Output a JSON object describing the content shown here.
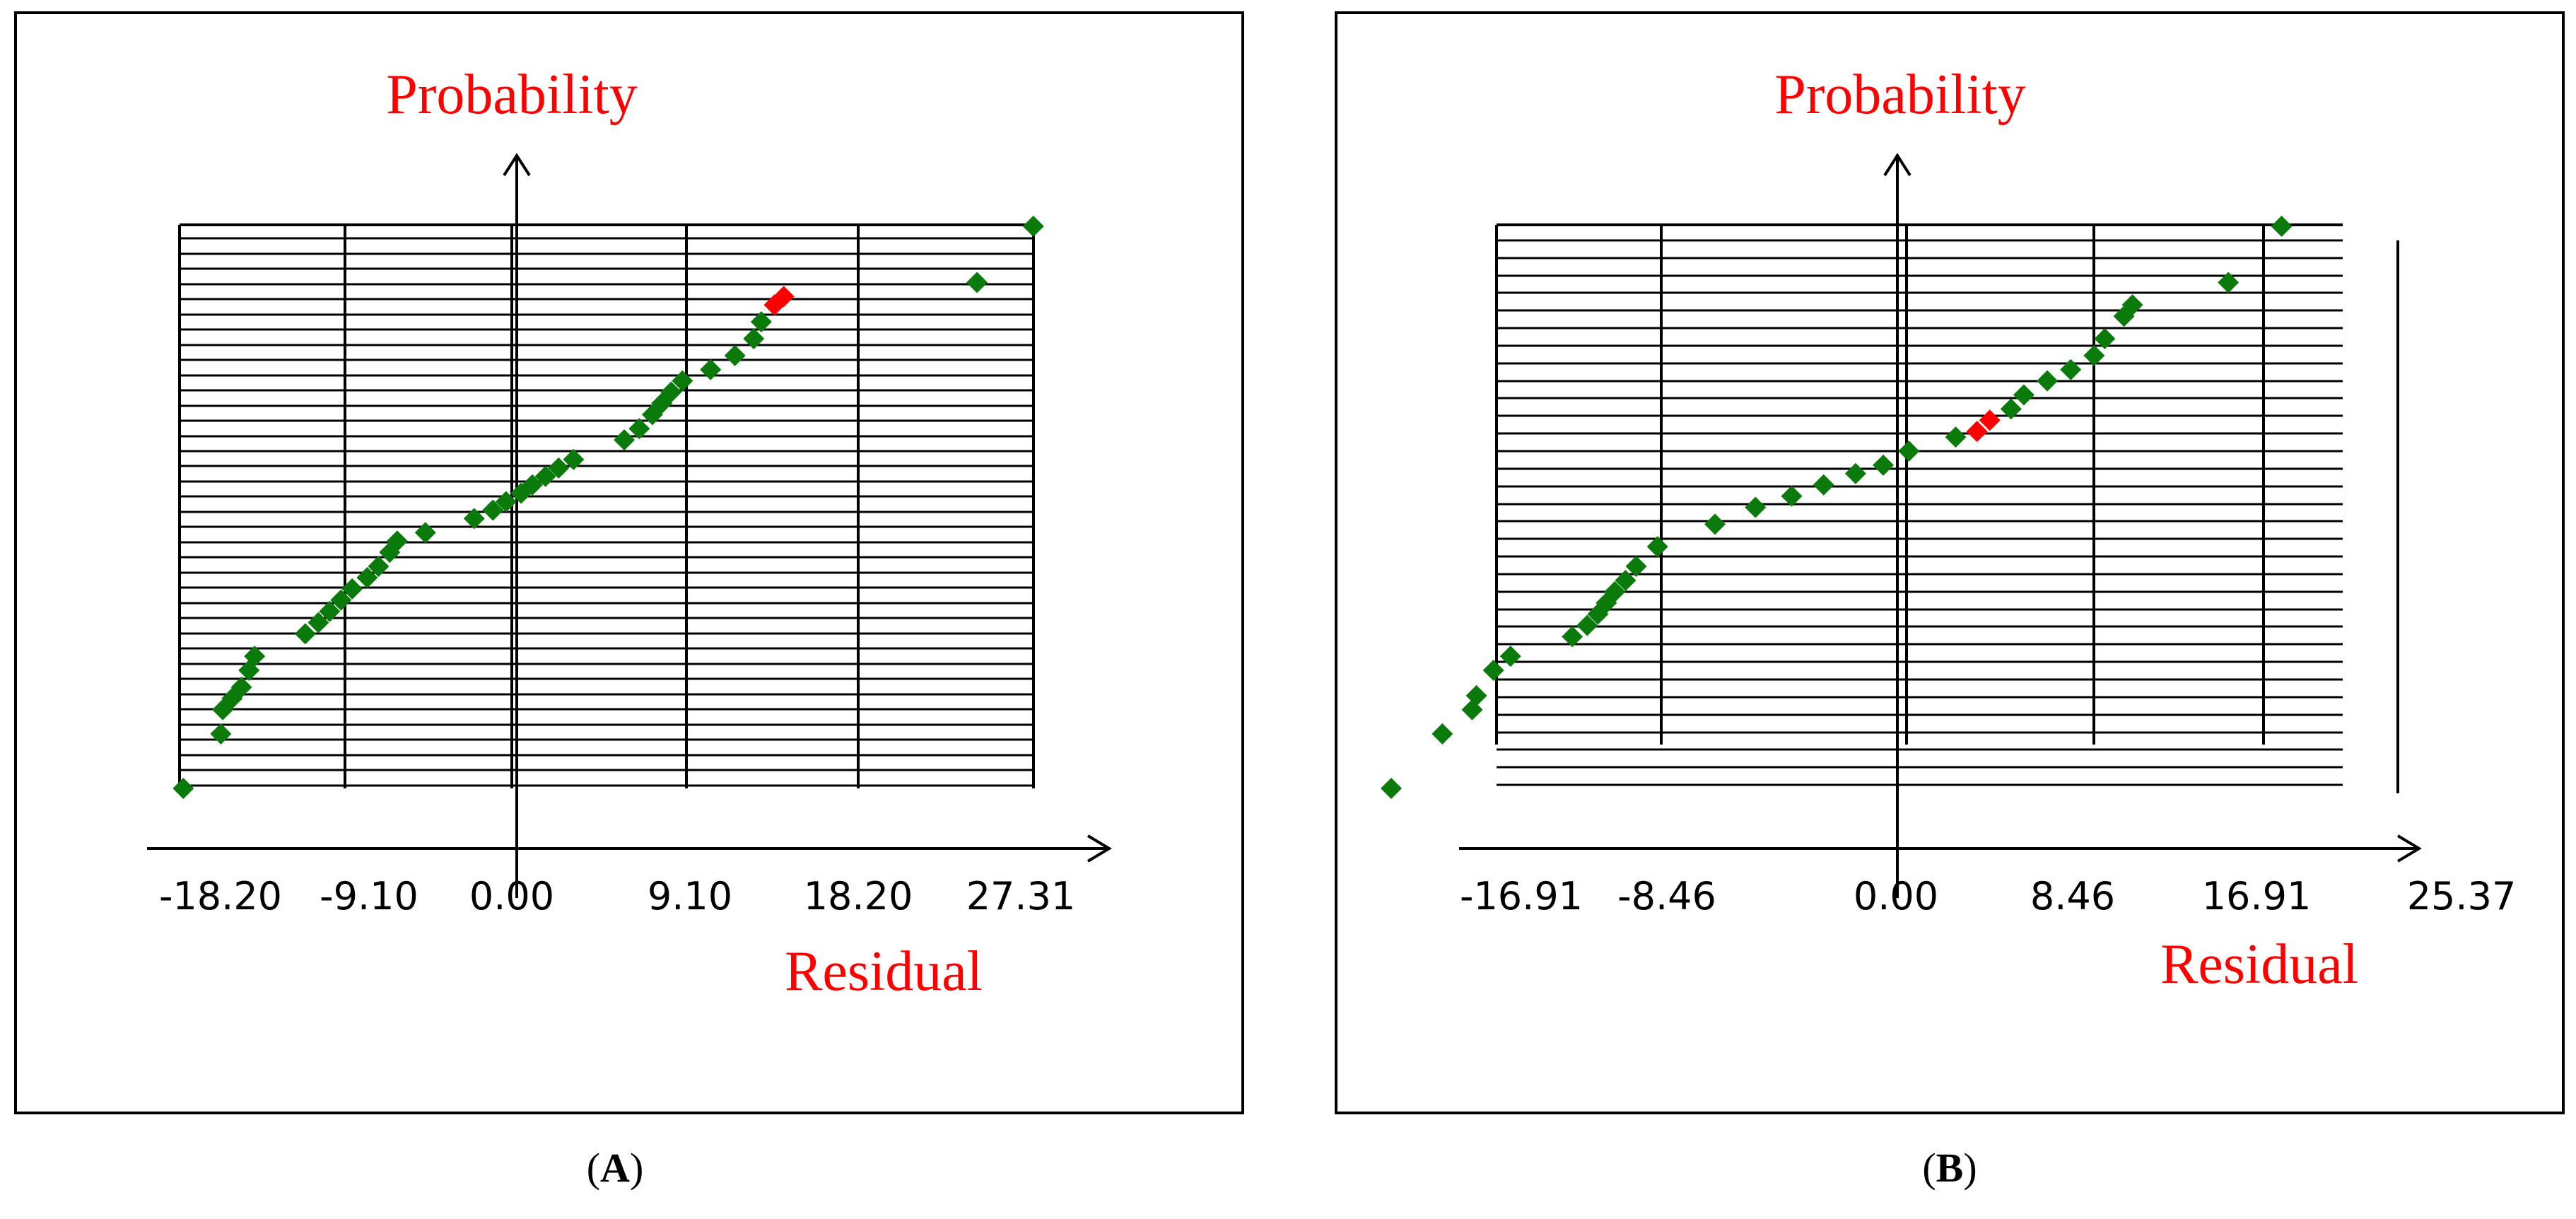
{
  "chart_data": [
    {
      "panel": "A",
      "type": "scatter",
      "title": "",
      "ylabel": "Probability",
      "xlabel": "Residual",
      "xticks": [
        "-18.20",
        "-9.10",
        "0.00",
        "9.10",
        "18.20",
        "27.31"
      ],
      "xlim": [
        -18.2,
        27.31
      ],
      "ylim": [
        0,
        1
      ],
      "grid": true,
      "colors": {
        "normal": "#0a7a0a",
        "highlight": "#ff0000"
      },
      "points": [
        {
          "x": -18.0,
          "y": 0.0
        },
        {
          "x": -16.0,
          "y": 0.097
        },
        {
          "x": -15.9,
          "y": 0.14
        },
        {
          "x": -15.4,
          "y": 0.16
        },
        {
          "x": -14.9,
          "y": 0.18
        },
        {
          "x": -14.5,
          "y": 0.21
        },
        {
          "x": -14.2,
          "y": 0.235
        },
        {
          "x": -11.5,
          "y": 0.275
        },
        {
          "x": -10.8,
          "y": 0.295
        },
        {
          "x": -10.2,
          "y": 0.315
        },
        {
          "x": -9.6,
          "y": 0.335
        },
        {
          "x": -9.0,
          "y": 0.355
        },
        {
          "x": -8.2,
          "y": 0.375
        },
        {
          "x": -7.6,
          "y": 0.395
        },
        {
          "x": -7.0,
          "y": 0.42
        },
        {
          "x": -6.6,
          "y": 0.44
        },
        {
          "x": -5.1,
          "y": 0.455
        },
        {
          "x": -2.5,
          "y": 0.48
        },
        {
          "x": -1.5,
          "y": 0.495
        },
        {
          "x": -0.8,
          "y": 0.51
        },
        {
          "x": 0.0,
          "y": 0.525
        },
        {
          "x": 0.6,
          "y": 0.54
        },
        {
          "x": 1.3,
          "y": 0.555
        },
        {
          "x": 2.0,
          "y": 0.57
        },
        {
          "x": 2.8,
          "y": 0.585
        },
        {
          "x": 5.5,
          "y": 0.62
        },
        {
          "x": 6.3,
          "y": 0.64
        },
        {
          "x": 7.0,
          "y": 0.665
        },
        {
          "x": 7.5,
          "y": 0.685
        },
        {
          "x": 8.0,
          "y": 0.705
        },
        {
          "x": 8.6,
          "y": 0.725
        },
        {
          "x": 10.1,
          "y": 0.745
        },
        {
          "x": 11.4,
          "y": 0.77
        },
        {
          "x": 12.4,
          "y": 0.8
        },
        {
          "x": 12.8,
          "y": 0.83
        },
        {
          "x": 13.5,
          "y": 0.86,
          "highlight": true
        },
        {
          "x": 14.0,
          "y": 0.875,
          "highlight": true
        },
        {
          "x": 24.3,
          "y": 0.9
        },
        {
          "x": 27.3,
          "y": 1.0
        }
      ]
    },
    {
      "panel": "B",
      "type": "scatter",
      "title": "",
      "ylabel": "Probability",
      "xlabel": "Residual",
      "xticks": [
        "-16.91",
        "-8.46",
        "0.00",
        "8.46",
        "16.91",
        "25.37"
      ],
      "xlim": [
        -19.5,
        25.37
      ],
      "ylim": [
        0,
        1
      ],
      "grid": true,
      "colors": {
        "normal": "#0a7a0a",
        "highlight": "#ff0000"
      },
      "points": [
        {
          "x": -19.3,
          "y": 0.0
        },
        {
          "x": -16.9,
          "y": 0.097
        },
        {
          "x": -15.5,
          "y": 0.14
        },
        {
          "x": -15.3,
          "y": 0.165
        },
        {
          "x": -14.5,
          "y": 0.21
        },
        {
          "x": -13.7,
          "y": 0.235
        },
        {
          "x": -10.8,
          "y": 0.27
        },
        {
          "x": -10.1,
          "y": 0.29
        },
        {
          "x": -9.6,
          "y": 0.31
        },
        {
          "x": -9.2,
          "y": 0.33
        },
        {
          "x": -8.8,
          "y": 0.35
        },
        {
          "x": -8.3,
          "y": 0.37
        },
        {
          "x": -7.8,
          "y": 0.395
        },
        {
          "x": -6.8,
          "y": 0.43
        },
        {
          "x": -4.1,
          "y": 0.47
        },
        {
          "x": -2.2,
          "y": 0.5
        },
        {
          "x": -0.5,
          "y": 0.52
        },
        {
          "x": 1.0,
          "y": 0.54
        },
        {
          "x": 2.5,
          "y": 0.56
        },
        {
          "x": 3.8,
          "y": 0.575
        },
        {
          "x": 5.0,
          "y": 0.6
        },
        {
          "x": 7.2,
          "y": 0.625
        },
        {
          "x": 8.2,
          "y": 0.635,
          "highlight": true
        },
        {
          "x": 8.8,
          "y": 0.655,
          "highlight": true
        },
        {
          "x": 9.8,
          "y": 0.675
        },
        {
          "x": 10.4,
          "y": 0.7
        },
        {
          "x": 11.5,
          "y": 0.725
        },
        {
          "x": 12.6,
          "y": 0.745
        },
        {
          "x": 13.7,
          "y": 0.77
        },
        {
          "x": 14.2,
          "y": 0.8
        },
        {
          "x": 15.1,
          "y": 0.84
        },
        {
          "x": 15.5,
          "y": 0.86
        },
        {
          "x": 20.0,
          "y": 0.9
        },
        {
          "x": 22.5,
          "y": 1.0
        }
      ]
    }
  ],
  "panel_labels": {
    "a": "A",
    "b": "B"
  }
}
